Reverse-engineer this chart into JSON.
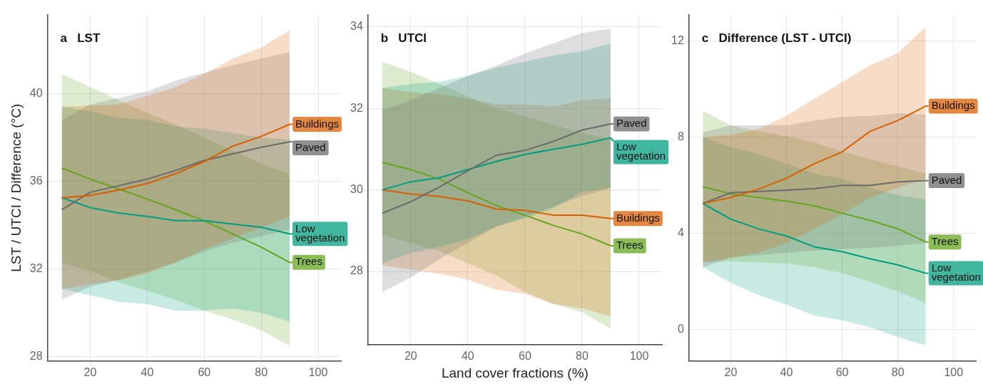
{
  "chart_data": [
    {
      "type": "line",
      "title": "a   LST",
      "ylabel": "LST / UTCI / Difference (°C)",
      "x": [
        10,
        20,
        30,
        40,
        50,
        60,
        70,
        80,
        90
      ],
      "xlim": [
        5,
        108
      ],
      "xticks": [
        20,
        40,
        60,
        80,
        100
      ],
      "ylim": [
        27.8,
        43.6
      ],
      "yticks": [
        28,
        32,
        36,
        40
      ],
      "grid": true,
      "legend": "right",
      "marker": "none",
      "series": [
        {
          "name": "Buildings",
          "color": "#d95f02",
          "values": [
            35.24,
            35.36,
            35.6,
            35.9,
            36.35,
            36.9,
            37.6,
            38.05,
            38.6
          ],
          "lower": [
            31.1,
            31.3,
            31.5,
            31.8,
            32.3,
            32.9,
            33.4,
            33.9,
            34.4
          ],
          "upper": [
            39.4,
            39.45,
            39.5,
            39.9,
            40.3,
            40.9,
            41.6,
            42.1,
            42.9
          ]
        },
        {
          "name": "Paved",
          "color": "#6b6b6b",
          "values": [
            34.7,
            35.5,
            35.8,
            36.1,
            36.5,
            36.95,
            37.25,
            37.55,
            37.8
          ],
          "lower": [
            30.6,
            31.2,
            31.5,
            31.9,
            32.3,
            32.8,
            33.2,
            33.5,
            33.8
          ],
          "upper": [
            38.8,
            39.5,
            39.8,
            40.1,
            40.6,
            40.95,
            41.3,
            41.6,
            41.9
          ]
        },
        {
          "name": "Low vegetation",
          "color": "#009e80",
          "values": [
            35.25,
            34.8,
            34.55,
            34.4,
            34.2,
            34.2,
            34.05,
            33.9,
            33.6
          ],
          "lower": [
            31.1,
            30.8,
            30.5,
            30.4,
            30.1,
            30.1,
            30.2,
            30.0,
            29.6
          ],
          "upper": [
            39.4,
            39.2,
            38.9,
            38.8,
            38.5,
            38.4,
            38.2,
            38.0,
            37.9
          ]
        },
        {
          "name": "Trees",
          "color": "#66a61e",
          "values": [
            36.6,
            36.1,
            35.65,
            35.2,
            34.7,
            34.2,
            33.6,
            33.0,
            32.3
          ],
          "lower": [
            32.3,
            31.9,
            31.4,
            31.0,
            30.6,
            30.1,
            29.7,
            29.2,
            28.5
          ],
          "upper": [
            40.9,
            40.3,
            39.7,
            39.1,
            38.6,
            38.0,
            37.4,
            36.8,
            36.3
          ]
        }
      ]
    },
    {
      "type": "line",
      "title": "b   UTCI",
      "xlabel": "Land cover fractions (%)",
      "x": [
        10,
        20,
        30,
        40,
        50,
        60,
        70,
        80,
        90
      ],
      "xlim": [
        5,
        108
      ],
      "xticks": [
        20,
        40,
        60,
        80,
        100
      ],
      "ylim": [
        26.2,
        34.3
      ],
      "yticks": [
        28,
        30,
        32,
        34
      ],
      "grid": true,
      "legend": "right",
      "marker": "none",
      "series": [
        {
          "name": "Paved",
          "color": "#6b6b6b",
          "values": [
            29.43,
            29.71,
            30.07,
            30.47,
            30.85,
            30.97,
            31.19,
            31.47,
            31.62
          ],
          "lower": [
            27.5,
            27.85,
            28.3,
            28.7,
            29.1,
            29.35,
            29.6,
            29.85,
            30.05
          ],
          "upper": [
            31.95,
            32.2,
            32.5,
            32.8,
            33.05,
            33.35,
            33.6,
            33.85,
            33.95
          ]
        },
        {
          "name": "Low vegetation",
          "color": "#009e80",
          "values": [
            30.0,
            30.2,
            30.3,
            30.5,
            30.7,
            30.87,
            31.0,
            31.12,
            31.28
          ],
          "lower": [
            28.2,
            28.45,
            28.6,
            28.8,
            29.1,
            29.3,
            29.55,
            29.95,
            30.05
          ],
          "upper": [
            32.5,
            32.6,
            32.65,
            32.8,
            33.0,
            33.15,
            33.3,
            33.4,
            33.6
          ]
        },
        {
          "name": "Buildings",
          "color": "#d95f02",
          "values": [
            30.0,
            29.9,
            29.84,
            29.73,
            29.53,
            29.5,
            29.38,
            29.38,
            29.3
          ],
          "lower": [
            28.15,
            28.05,
            27.95,
            27.8,
            27.55,
            27.45,
            27.2,
            27.1,
            26.9
          ],
          "upper": [
            32.5,
            32.4,
            32.35,
            32.25,
            32.1,
            32.1,
            32.05,
            32.2,
            32.25
          ]
        },
        {
          "name": "Trees",
          "color": "#66a61e",
          "values": [
            30.68,
            30.5,
            30.27,
            29.93,
            29.62,
            29.38,
            29.13,
            28.92,
            28.63
          ],
          "lower": [
            28.9,
            28.7,
            28.5,
            28.2,
            27.9,
            27.5,
            27.2,
            27.0,
            26.6
          ],
          "upper": [
            33.15,
            32.9,
            32.6,
            32.3,
            32.0,
            31.8,
            31.6,
            31.4,
            31.25
          ]
        }
      ]
    },
    {
      "type": "line",
      "title": "c   Difference (LST - UTCI)",
      "x": [
        10,
        20,
        30,
        40,
        50,
        60,
        70,
        80,
        90
      ],
      "xlim": [
        5,
        108
      ],
      "xticks": [
        20,
        40,
        60,
        80,
        100
      ],
      "ylim": [
        -1.3,
        13.1
      ],
      "yticks": [
        0,
        4,
        8,
        12
      ],
      "grid": true,
      "legend": "right",
      "marker": "none",
      "series": [
        {
          "name": "Buildings",
          "color": "#d95f02",
          "values": [
            5.25,
            5.5,
            5.85,
            6.3,
            6.9,
            7.4,
            8.25,
            8.7,
            9.3
          ],
          "lower": [
            2.8,
            3.0,
            3.2,
            3.6,
            4.2,
            4.8,
            5.5,
            5.9,
            6.3
          ],
          "upper": [
            8.0,
            8.1,
            8.35,
            8.9,
            9.6,
            10.3,
            11.0,
            11.5,
            12.6
          ]
        },
        {
          "name": "Paved",
          "color": "#6b6b6b",
          "values": [
            5.25,
            5.7,
            5.75,
            5.8,
            5.87,
            6.0,
            6.0,
            6.15,
            6.2
          ],
          "lower": [
            2.6,
            3.0,
            3.1,
            3.2,
            3.3,
            3.35,
            3.4,
            3.5,
            3.6
          ],
          "upper": [
            8.2,
            8.5,
            8.5,
            8.5,
            8.7,
            8.85,
            8.9,
            9.0,
            8.95
          ]
        },
        {
          "name": "Trees",
          "color": "#66a61e",
          "values": [
            5.95,
            5.65,
            5.5,
            5.35,
            5.15,
            4.85,
            4.55,
            4.2,
            3.65
          ],
          "lower": [
            2.8,
            2.85,
            2.8,
            2.75,
            2.6,
            2.35,
            2.0,
            1.6,
            1.1
          ],
          "upper": [
            9.1,
            8.5,
            8.25,
            8.05,
            7.8,
            7.4,
            7.1,
            6.8,
            6.5
          ]
        },
        {
          "name": "Low vegetation",
          "color": "#009e80",
          "values": [
            5.25,
            4.6,
            4.2,
            3.9,
            3.45,
            3.25,
            2.95,
            2.7,
            2.35
          ],
          "lower": [
            2.6,
            1.95,
            1.45,
            1.05,
            0.6,
            0.4,
            0.1,
            -0.3,
            -0.65
          ],
          "upper": [
            8.0,
            7.6,
            7.3,
            6.9,
            6.5,
            6.3,
            5.9,
            5.6,
            5.4
          ]
        }
      ]
    }
  ]
}
